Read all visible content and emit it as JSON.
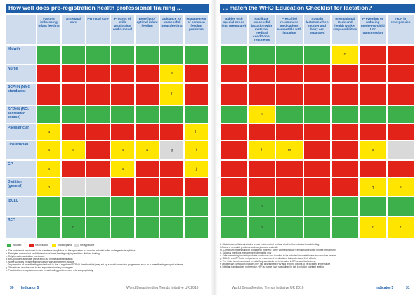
{
  "pages": [
    {
      "title": "How well does pre-registration health professional training ...",
      "columns": [
        "Factors influencing infant feeding",
        "Antenatal care",
        "Perinatal care",
        "Process of milk production and removal",
        "Benefits of optimal infant feeding",
        "Guidance for successful breastfeeding",
        "Management of common feeding problems"
      ],
      "rows": [
        {
          "label": "Midwife",
          "cells": [
            {
              "color": "#3db04b"
            },
            {
              "color": "#3db04b"
            },
            {
              "color": "#3db04b"
            },
            {
              "color": "#3db04b"
            },
            {
              "color": "#3db04b"
            },
            {
              "color": "#3db04b"
            },
            {
              "color": "#3db04b"
            }
          ]
        },
        {
          "label": "Nurse",
          "cells": [
            {
              "color": "#e2231a"
            },
            {
              "color": "#e2231a"
            },
            {
              "color": "#e2231a"
            },
            {
              "color": "#e2231a"
            },
            {
              "color": "#e2231a"
            },
            {
              "color": "#ffe500",
              "text": "e"
            },
            {
              "color": "#e2231a"
            }
          ]
        },
        {
          "label": "SCPHN (NMC standards)",
          "cells": [
            {
              "color": "#e2231a"
            },
            {
              "color": "#e2231a"
            },
            {
              "color": "#e2231a"
            },
            {
              "color": "#e2231a"
            },
            {
              "color": "#e2231a"
            },
            {
              "color": "#ffe500",
              "text": "f"
            },
            {
              "color": "#e2231a"
            }
          ]
        },
        {
          "label": "SCPHN (BFI-accredited course)",
          "cells": [
            {
              "color": "#3db04b"
            },
            {
              "color": "#3db04b"
            },
            {
              "color": "#3db04b"
            },
            {
              "color": "#3db04b"
            },
            {
              "color": "#3db04b"
            },
            {
              "color": "#3db04b"
            },
            {
              "color": "#3db04b"
            }
          ]
        },
        {
          "label": "Paediatrician",
          "cells": [
            {
              "color": "#ffe500",
              "text": "a"
            },
            {
              "color": "#e2231a"
            },
            {
              "color": "#e2231a"
            },
            {
              "color": "#e2231a"
            },
            {
              "color": "#e2231a"
            },
            {
              "color": "#e2231a"
            },
            {
              "color": "#ffe500",
              "text": "h"
            }
          ]
        },
        {
          "label": "Obstetrician",
          "cells": [
            {
              "color": "#ffe500",
              "text": "a"
            },
            {
              "color": "#ffe500",
              "text": "c"
            },
            {
              "color": "#e2231a"
            },
            {
              "color": "#ffe500",
              "text": "a"
            },
            {
              "color": "#ffe500",
              "text": "a"
            },
            {
              "color": "#d9d9d9",
              "text": "g"
            },
            {
              "color": "#ffe500",
              "text": "i"
            }
          ]
        },
        {
          "label": "GP",
          "cells": [
            {
              "color": "#ffe500",
              "text": "a"
            },
            {
              "color": "#e2231a"
            },
            {
              "color": "#e2231a"
            },
            {
              "color": "#ffe500",
              "text": "a"
            },
            {
              "color": "#e2231a"
            },
            {
              "color": "#e2231a"
            },
            {
              "color": "#ffe500",
              "text": "j"
            }
          ]
        },
        {
          "label": "Dietitian (general)",
          "cells": [
            {
              "color": "#ffe500",
              "text": "b"
            },
            {
              "color": "#d9d9d9"
            },
            {
              "color": "#d9d9d9"
            },
            {
              "color": "#e2231a"
            },
            {
              "color": "#e2231a"
            },
            {
              "color": "#e2231a"
            },
            {
              "color": "#e2231a"
            }
          ]
        },
        {
          "label": "IBCLC",
          "cells": [
            {
              "color": "#3db04b"
            },
            {
              "color": "#3db04b"
            },
            {
              "color": "#3db04b"
            },
            {
              "color": "#3db04b"
            },
            {
              "color": "#3db04b"
            },
            {
              "color": "#3db04b"
            },
            {
              "color": "#3db04b"
            }
          ]
        },
        {
          "label": "BFC",
          "cells": [
            {
              "color": "#3db04b"
            },
            {
              "color": "#3db04b",
              "text": "d"
            },
            {
              "color": "#3db04b"
            },
            {
              "color": "#3db04b"
            },
            {
              "color": "#3db04b"
            },
            {
              "color": "#3db04b"
            },
            {
              "color": "#3db04b"
            }
          ]
        }
      ],
      "legend": [
        {
          "label": "included",
          "color": "#3db04b"
        },
        {
          "label": "not included",
          "color": "#e2231a"
        },
        {
          "label": "unclear/partial",
          "color": "#ffe500"
        },
        {
          "label": "not applicable",
          "color": "#d9d9d9"
        }
      ],
      "notes": [
        "a. The topic is not mentioned in the standards or syllabus for the specialism but may be included in the undergraduate syllabus",
        "b. Principles covered but explicit mention of infant feeding only in paediatric dietitian training",
        "c. Only breast examination mentioned",
        "d. BFC provides antenatal preparation but not breast examination",
        "e. Nurse supports breastfeeding in liaison with a registered midwife",
        "f. Only mention of breastfeeding in standards is that a registered SCPHN (health visitor) may set up a health-promotion programme, such as a breastfeeding support scheme",
        "g. Obstetrician decides care to and supports midwifery colleagues",
        "h. Paediatrician recognises common breastfeeding problems and refers appropriately"
      ],
      "footer": {
        "page": "30",
        "section": "Indicator 5",
        "publication": "World Breastfeeding Trends Initiative UK 2016"
      }
    },
    {
      "title": "... match the WHO Education Checklist for lactation?",
      "columns": [
        "Babies with special needs (e.g. premature)",
        "Facilitate successful lactation with maternal medical conditions/ treatments",
        "Prescribe/ recommend medications compatible with lactation",
        "Sustain lactation when mother and baby are separated",
        "International Code and health worker responsibilities",
        "Preventing or reducing mother-to-child HIV transmission",
        "IYCF in emergencies"
      ],
      "rows": [
        {
          "cells": [
            {
              "color": "#3db04b"
            },
            {
              "color": "#3db04b"
            },
            {
              "color": "#3db04b"
            },
            {
              "color": "#3db04b"
            },
            {
              "color": "#ffe500",
              "text": "o"
            },
            {
              "color": "#e2231a"
            },
            {
              "color": "#e2231a"
            }
          ]
        },
        {
          "cells": [
            {
              "color": "#e2231a"
            },
            {
              "color": "#e2231a"
            },
            {
              "color": "#e2231a"
            },
            {
              "color": "#e2231a"
            },
            {
              "color": "#e2231a"
            },
            {
              "color": "#e2231a"
            },
            {
              "color": "#e2231a"
            }
          ]
        },
        {
          "cells": [
            {
              "color": "#e2231a"
            },
            {
              "color": "#e2231a"
            },
            {
              "color": "#e2231a"
            },
            {
              "color": "#e2231a"
            },
            {
              "color": "#e2231a"
            },
            {
              "color": "#e2231a"
            },
            {
              "color": "#e2231a"
            }
          ]
        },
        {
          "cells": [
            {
              "color": "#3db04b"
            },
            {
              "color": "#ffe500",
              "text": "k"
            },
            {
              "color": "#3db04b"
            },
            {
              "color": "#3db04b"
            },
            {
              "color": "#3db04b"
            },
            {
              "color": "#3db04b"
            },
            {
              "color": "#3db04b"
            }
          ]
        },
        {
          "cells": [
            {
              "color": "#e2231a"
            },
            {
              "color": "#e2231a"
            },
            {
              "color": "#e2231a"
            },
            {
              "color": "#e2231a"
            },
            {
              "color": "#e2231a"
            },
            {
              "color": "#e2231a"
            },
            {
              "color": "#e2231a"
            }
          ]
        },
        {
          "cells": [
            {
              "color": "#e2231a"
            },
            {
              "color": "#ffe500",
              "text": "l"
            },
            {
              "color": "#ffe500",
              "text": "m"
            },
            {
              "color": "#e2231a"
            },
            {
              "color": "#e2231a"
            },
            {
              "color": "#ffe500",
              "text": "p"
            },
            {
              "color": "#d9d9d9"
            }
          ]
        },
        {
          "cells": [
            {
              "color": "#e2231a"
            },
            {
              "color": "#e2231a"
            },
            {
              "color": "#e2231a"
            },
            {
              "color": "#e2231a"
            },
            {
              "color": "#e2231a"
            },
            {
              "color": "#e2231a"
            },
            {
              "color": "#e2231a"
            }
          ]
        },
        {
          "cells": [
            {
              "color": "#e2231a"
            },
            {
              "color": "#e2231a"
            },
            {
              "color": "#e2231a"
            },
            {
              "color": "#e2231a"
            },
            {
              "color": "#e2231a"
            },
            {
              "color": "#ffe500",
              "text": "q"
            },
            {
              "color": "#ffe500",
              "text": "s"
            }
          ]
        },
        {
          "cells": [
            {
              "color": "#3db04b"
            },
            {
              "color": "#3db04b",
              "text": "n"
            },
            {
              "color": "#3db04b"
            },
            {
              "color": "#3db04b"
            },
            {
              "color": "#3db04b"
            },
            {
              "color": "#3db04b"
            },
            {
              "color": "#3db04b"
            }
          ]
        },
        {
          "cells": [
            {
              "color": "#3db04b"
            },
            {
              "color": "#3db04b",
              "text": "n"
            },
            {
              "color": "#3db04b"
            },
            {
              "color": "#3db04b"
            },
            {
              "color": "#3db04b"
            },
            {
              "color": "#ffe500",
              "text": "r"
            },
            {
              "color": "#ffe500",
              "text": "r"
            }
          ]
        }
      ],
      "notes": [
        "k. Obstetrician syllabus includes breast problems but unclear whether this includes breastfeeding",
        "l. Aware of neonatal problems such as jaundice and colic",
        "m. Curriculum makes support for diabetic mothers; some courses include training to prescribe ('nurse prescribing')",
        "n. Syllabus mentions management of mastitis only",
        "o. Safe prescribing in undergraduate curriculum and lactation to be included for obstetricians in curriculum rewrite",
        "p. IBCLCs and BFCs do not prescribe or recommend medications but understand their effects",
        "q. The Code is not mentioned in midwifery standards but is included in BFI accredited training",
        "r. Obstetrician curriculum includes HIV risk assessment; HIV and feeding options to be included in the future",
        "s. Dietitian training does not mention HIV but some have specialised in this in relation to infant feeding"
      ],
      "footer": {
        "page": "31",
        "section": "Indicator 5",
        "publication": "World Breastfeeding Trends Initiative UK 2016"
      }
    }
  ]
}
